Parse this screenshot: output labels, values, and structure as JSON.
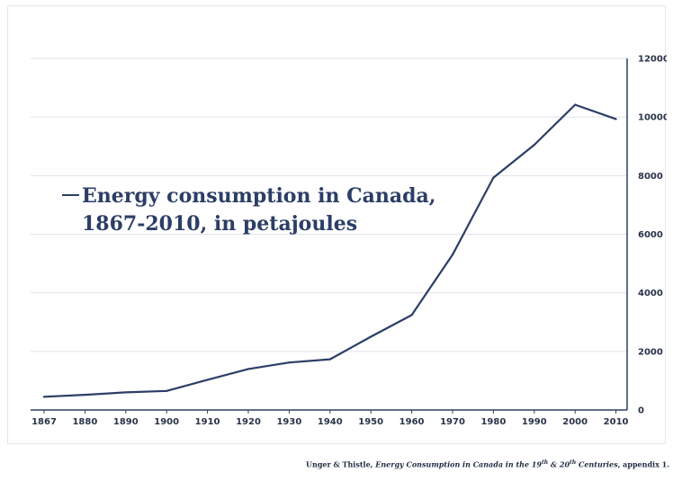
{
  "chart_data": {
    "type": "line",
    "x": [
      "1867",
      "1880",
      "1890",
      "1900",
      "1910",
      "1920",
      "1930",
      "1940",
      "1950",
      "1960",
      "1970",
      "1980",
      "1990",
      "2000",
      "2010"
    ],
    "series": [
      {
        "name": "Energy consumption in Canada, 1867-2010, in petajoules",
        "values": [
          450,
          520,
          600,
          650,
          1030,
          1400,
          1620,
          1730,
          2500,
          3240,
          5300,
          7930,
          9050,
          10420,
          9930
        ]
      }
    ],
    "ylim": [
      0,
      12000
    ],
    "yticks": [
      "0",
      "2000",
      "4000",
      "6000",
      "8000",
      "10000",
      "12000"
    ],
    "y_axis_side": "right",
    "grid": "horizontal",
    "legend_placement": "center-left",
    "colors": {
      "line": "#2c3e66",
      "grid": "#dfe3ea",
      "axis": "#2c3e66"
    }
  },
  "legend": {
    "line1": "Energy consumption in Canada,",
    "line2": "1867-2010, in petajoules"
  },
  "source": {
    "authors": "Unger & Thistle, ",
    "title_a": "Energy Consumption in Canada in the 19",
    "sup1": "th",
    "title_b": " & 20",
    "sup2": "th",
    "title_c": " Centuries",
    "suffix": ", appendix 1."
  }
}
